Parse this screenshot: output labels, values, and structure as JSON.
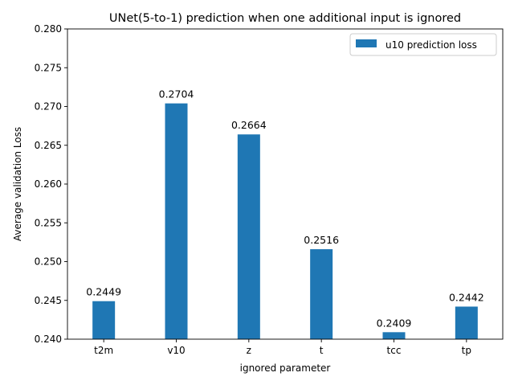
{
  "chart_data": {
    "type": "bar",
    "title": "UNet(5-to-1) prediction when one additional input is ignored",
    "xlabel": "ignored parameter",
    "ylabel": "Average validation Loss",
    "categories": [
      "t2m",
      "v10",
      "z",
      "t",
      "tcc",
      "tp"
    ],
    "series": [
      {
        "name": "u10 prediction loss",
        "values": [
          0.2449,
          0.2704,
          0.2664,
          0.2516,
          0.2409,
          0.2442
        ],
        "labels": [
          "0.2449",
          "0.2704",
          "0.2664",
          "0.2516",
          "0.2409",
          "0.2442"
        ],
        "color": "#1f77b4"
      }
    ],
    "ylim": [
      0.24,
      0.28
    ],
    "yticks": [
      0.24,
      0.245,
      0.25,
      0.255,
      0.26,
      0.265,
      0.27,
      0.275,
      0.28
    ],
    "ytick_labels": [
      "0.240",
      "0.245",
      "0.250",
      "0.255",
      "0.260",
      "0.265",
      "0.270",
      "0.275",
      "0.280"
    ],
    "grid": false,
    "legend_position": "top-right"
  }
}
